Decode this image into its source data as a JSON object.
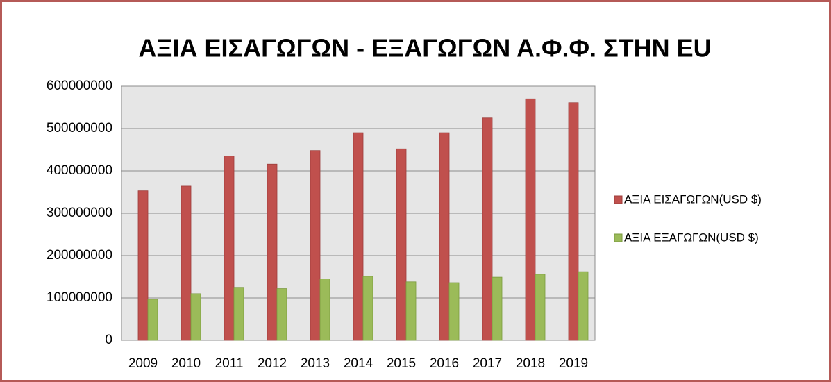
{
  "chart_data": {
    "type": "bar",
    "title": "ΑΞΙΑ ΕΙΣΑΓΩΓΩΝ - ΕΞΑΓΩΓΩΝ Α.Φ.Φ. ΣΤΗΝ EU",
    "categories": [
      "2009",
      "2010",
      "2011",
      "2012",
      "2013",
      "2014",
      "2015",
      "2016",
      "2017",
      "2018",
      "2019"
    ],
    "series": [
      {
        "name": "ΑΞΙΑ ΕΙΣΑΓΩΓΩΝ(USD $)",
        "color": "#c0504d",
        "values": [
          353000000,
          364000000,
          435000000,
          416000000,
          448000000,
          490000000,
          452000000,
          490000000,
          525000000,
          570000000,
          561000000
        ]
      },
      {
        "name": "ΑΞΙΑ ΕΞΑΓΩΓΩΝ(USD $)",
        "color": "#9bbb59",
        "values": [
          97000000,
          110000000,
          125000000,
          122000000,
          145000000,
          151000000,
          138000000,
          136000000,
          149000000,
          156000000,
          162000000
        ]
      }
    ],
    "ylim": [
      0,
      600000000
    ],
    "yticks": [
      0,
      100000000,
      200000000,
      300000000,
      400000000,
      500000000,
      600000000
    ],
    "grid": true,
    "legend": "right"
  }
}
